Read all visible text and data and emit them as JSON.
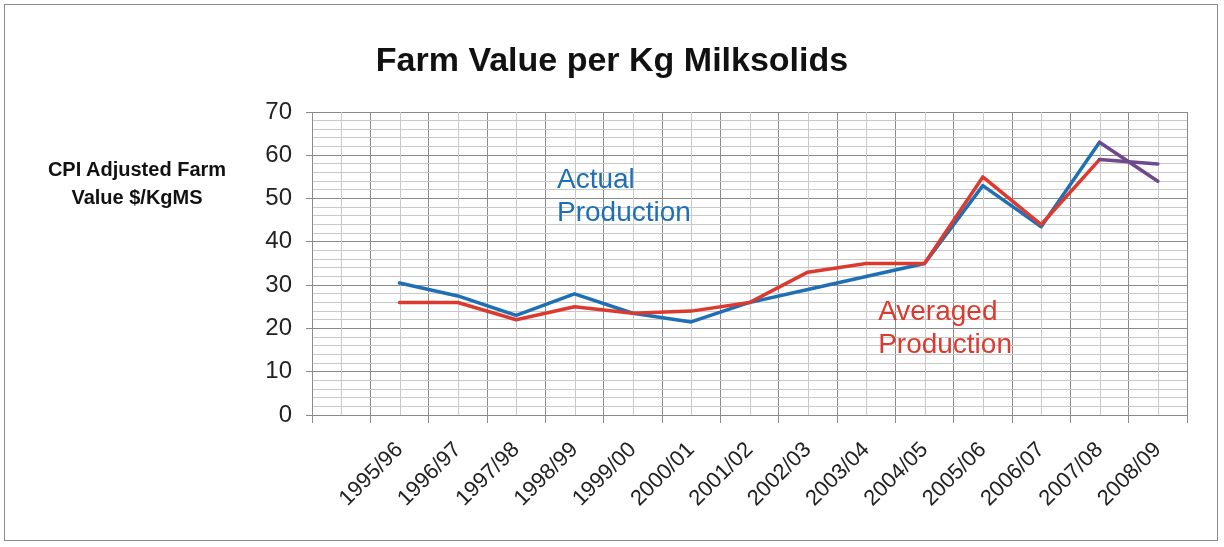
{
  "chart_data": {
    "type": "line",
    "title": "Farm Value per Kg Milksolids",
    "ylabel": "CPI Adjusted Farm Value $/KgMS",
    "categories": [
      null,
      "1995/96",
      "1996/97",
      "1997/98",
      "1998/99",
      "1999/00",
      "2000/01",
      "2001/02",
      "2002/03",
      "2003/04",
      "2004/05",
      "2005/06",
      "2006/07",
      "2007/08",
      "2008/09"
    ],
    "series": [
      {
        "name": "Actual Production",
        "color": "#1f6fb5",
        "values": [
          null,
          30.5,
          27.5,
          23,
          28,
          23.5,
          21.5,
          26,
          29,
          32,
          35,
          53,
          43.5,
          63,
          null
        ]
      },
      {
        "name": "Averaged Production",
        "color": "#dd3a2f",
        "values": [
          null,
          26,
          26,
          22,
          25,
          23.5,
          24,
          26,
          33,
          35,
          35,
          55,
          44,
          59,
          null
        ]
      },
      {
        "color": "#6e4a8c",
        "values": [
          null,
          null,
          null,
          null,
          null,
          null,
          null,
          null,
          null,
          null,
          null,
          null,
          null,
          63,
          54
        ]
      },
      {
        "color": "#6e4a8c",
        "values": [
          null,
          null,
          null,
          null,
          null,
          null,
          null,
          null,
          null,
          null,
          null,
          null,
          null,
          59,
          58
        ]
      }
    ],
    "ylim": [
      0,
      70
    ],
    "yticks": [
      0,
      {
        "value": 2,
        "label": null
      },
      {
        "value": 4,
        "label": null
      },
      {
        "value": 6,
        "label": null
      },
      {
        "value": 8,
        "label": null
      },
      10,
      {
        "value": 12,
        "label": null
      },
      {
        "value": 14,
        "label": null
      },
      {
        "value": 16,
        "label": null
      },
      {
        "value": 18,
        "label": null
      },
      20,
      {
        "value": 22,
        "label": null
      },
      {
        "value": 24,
        "label": null
      },
      {
        "value": 26,
        "label": null
      },
      {
        "value": 28,
        "label": null
      },
      30,
      {
        "value": 32,
        "label": null
      },
      {
        "value": 34,
        "label": null
      },
      {
        "value": 36,
        "label": null
      },
      {
        "value": 38,
        "label": null
      },
      40,
      {
        "value": 42,
        "label": null
      },
      {
        "value": 44,
        "label": null
      },
      {
        "value": 46,
        "label": null
      },
      {
        "value": 48,
        "label": null
      },
      50,
      {
        "value": 52,
        "label": null
      },
      {
        "value": 54,
        "label": null
      },
      {
        "value": 56,
        "label": null
      },
      {
        "value": 58,
        "label": null
      },
      60,
      {
        "value": 62,
        "label": null
      },
      {
        "value": 64,
        "label": null
      },
      {
        "value": 66,
        "label": null
      },
      {
        "value": 68,
        "label": null
      },
      70
    ],
    "grid": true,
    "legend": false,
    "marker": "none",
    "line_style": "solid"
  }
}
